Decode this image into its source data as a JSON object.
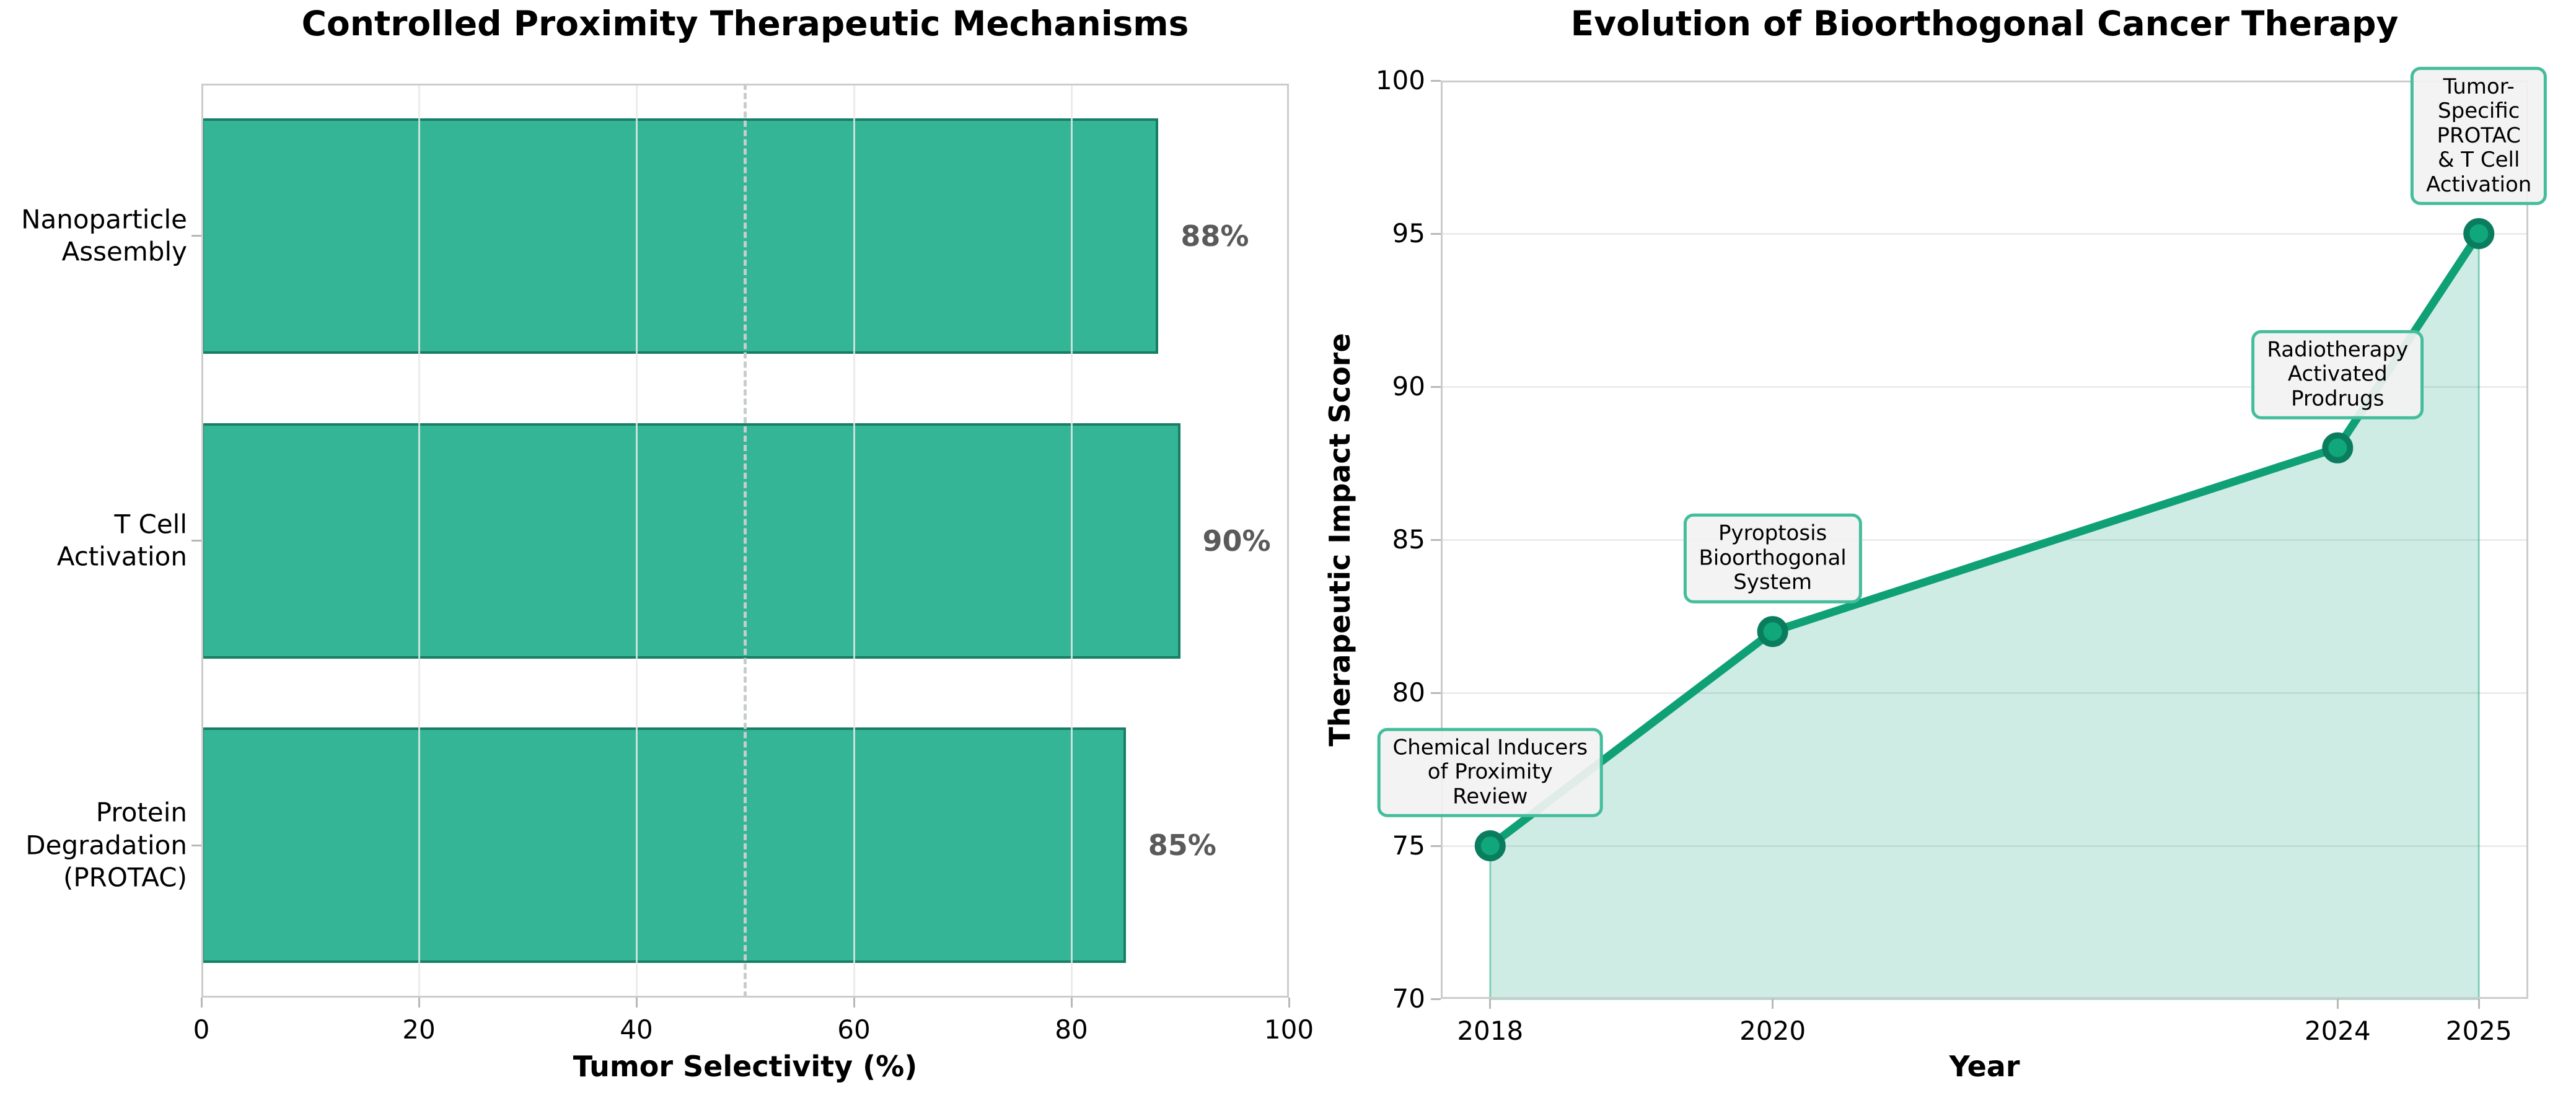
{
  "page": {
    "background": "#ffffff"
  },
  "chart_data": [
    {
      "type": "bar",
      "orientation": "horizontal",
      "title": "Controlled Proximity Therapeutic Mechanisms",
      "xlabel": "Tumor Selectivity (%)",
      "ylabel": "",
      "categories": [
        "Nanoparticle\nAssembly",
        "T Cell\nActivation",
        "Protein\nDegradation\n(PROTAC)"
      ],
      "values": [
        88,
        90,
        85
      ],
      "value_labels": [
        "88%",
        "90%",
        "85%"
      ],
      "xlim": [
        0,
        100
      ],
      "xticks": [
        "0",
        "20",
        "40",
        "60",
        "80",
        "100"
      ],
      "xtick_values": [
        0,
        20,
        40,
        60,
        80,
        100
      ],
      "reference_line_x": 50,
      "grid": "vertical gridlines at x ticks, dashed reference line at 50",
      "legend": "none",
      "colors": {
        "bar_fill": "#34b595",
        "bar_edge": "#177e66",
        "value_label": "#5a5a5a",
        "grid": "rgba(231,233,232,0.85)",
        "reference_line": "#c7cdca",
        "spine": "#cccccc",
        "tick": "#b8b8b8",
        "text": "#000000"
      }
    },
    {
      "type": "line",
      "title": "Evolution of Bioorthogonal Cancer Therapy",
      "xlabel": "Year",
      "ylabel": "Therapeutic Impact Score",
      "x": [
        2018,
        2020,
        2024,
        2025
      ],
      "y": [
        75,
        82,
        88,
        95
      ],
      "annotations": [
        "Chemical Inducers\nof Proximity\nReview",
        "Pyroptosis\nBioorthogonal\nSystem",
        "Radiotherapy\nActivated\nProdrugs",
        "Tumor-Specific\nPROTAC & T Cell\nActivation"
      ],
      "xlim": [
        2017.65,
        2025.35
      ],
      "ylim": [
        70,
        100
      ],
      "xticks": [
        "2018",
        "2020",
        "2024",
        "2025"
      ],
      "xtick_values": [
        2018,
        2020,
        2024,
        2025
      ],
      "yticks": [
        "70",
        "75",
        "80",
        "85",
        "90",
        "95",
        "100"
      ],
      "ytick_values": [
        70,
        75,
        80,
        85,
        90,
        95,
        100
      ],
      "grid": "horizontal gridlines at y ticks",
      "area_fill_to": 70,
      "legend": "none",
      "colors": {
        "line": "#0fa076",
        "marker_fill": "#10a77b",
        "marker_edge": "#0a7d5f",
        "area": "rgba(15,160,118,0.20)",
        "area_edge": "rgba(15,160,118,0.45)",
        "annotation_bg": "rgba(242,242,242,0.92)",
        "annotation_border": "#44bd9c",
        "grid": "#ececec",
        "spine": "#cccccc",
        "tick": "#b8b8b8",
        "text": "#000000"
      }
    }
  ]
}
